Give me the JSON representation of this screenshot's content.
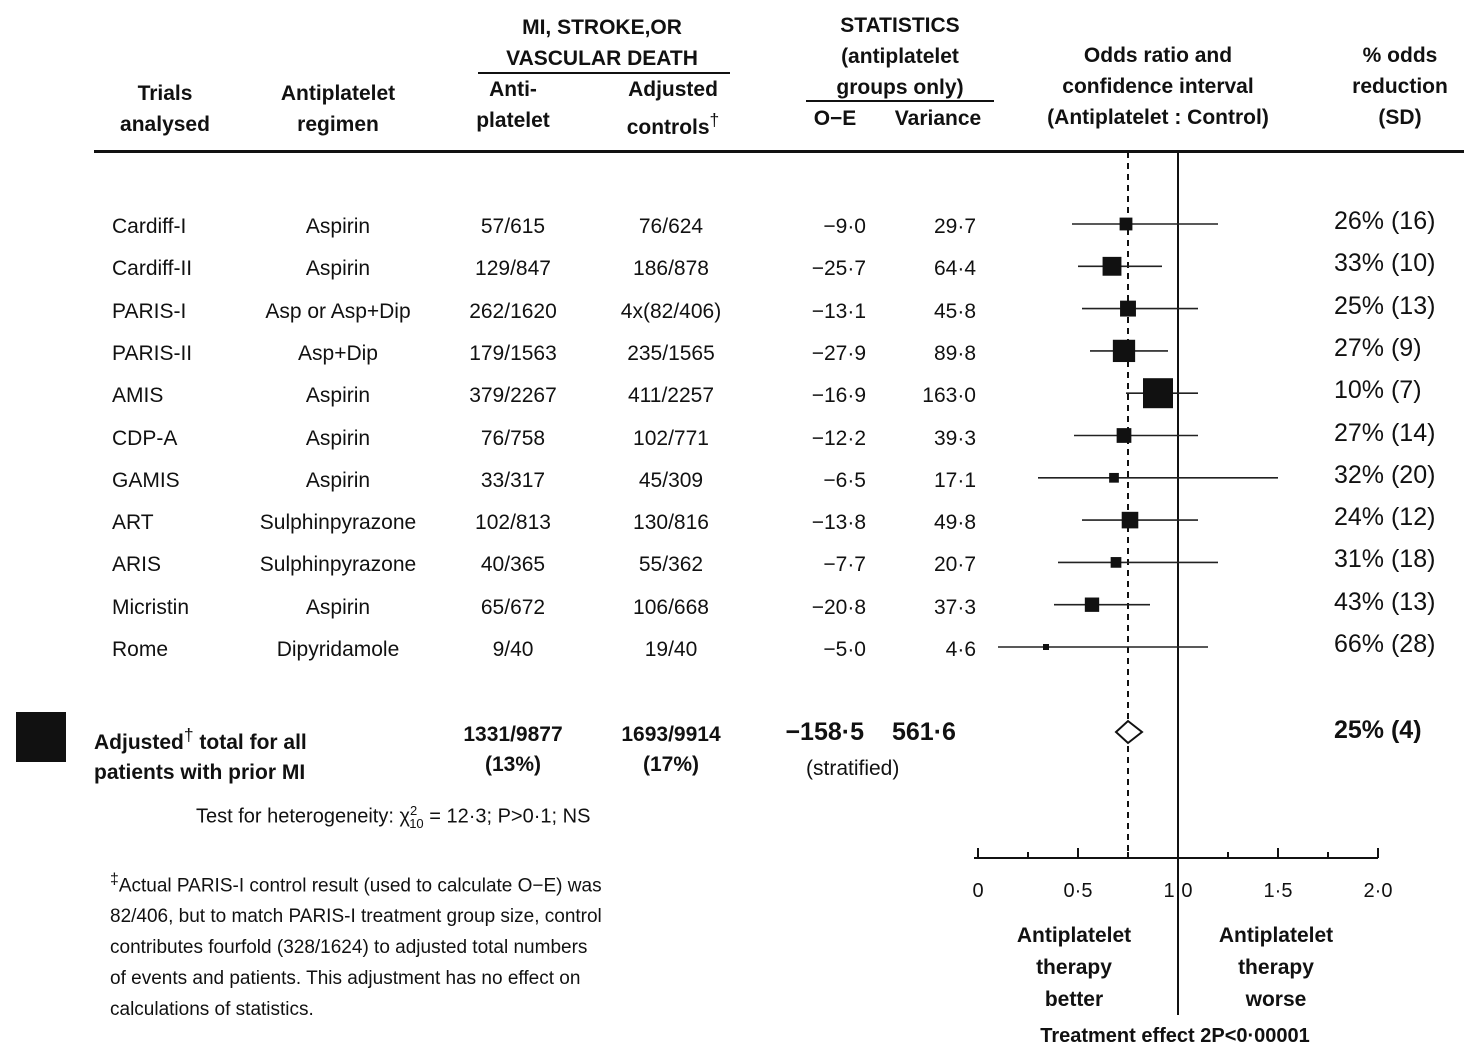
{
  "headers": {
    "trials": [
      "Trials",
      "analysed"
    ],
    "regimen": [
      "Antiplatelet",
      "regimen"
    ],
    "group": [
      "MI, STROKE,OR",
      "VASCULAR DEATH"
    ],
    "anti": [
      "Anti-",
      "platelet"
    ],
    "adjusted": [
      "Adjusted",
      "controls"
    ],
    "adjusted_mark": "†",
    "stats": [
      "STATISTICS",
      "(antiplatelet",
      "groups only)"
    ],
    "oe": "O−E",
    "variance": "Variance",
    "or": [
      "Odds ratio and",
      "confidence interval",
      "(Antiplatelet : Control)"
    ],
    "reduction": [
      "% odds",
      "reduction",
      "(SD)"
    ]
  },
  "rows": [
    {
      "trial": "Cardiff-I",
      "regimen": "Aspirin",
      "anti": "57/615",
      "control": "76/624",
      "oe": "−9·0",
      "var": "29·7",
      "red": "26% (16)"
    },
    {
      "trial": "Cardiff-II",
      "regimen": "Aspirin",
      "anti": "129/847",
      "control": "186/878",
      "oe": "−25·7",
      "var": "64·4",
      "red": "33% (10)"
    },
    {
      "trial": "PARIS-I",
      "regimen": "Asp or Asp+Dip",
      "anti": "262/1620",
      "control": "4x(82/406)",
      "oe": "−13·1",
      "var": "45·8",
      "red": "25% (13)"
    },
    {
      "trial": "PARIS-II",
      "regimen": "Asp+Dip",
      "anti": "179/1563",
      "control": "235/1565",
      "oe": "−27·9",
      "var": "89·8",
      "red": "27% (9)"
    },
    {
      "trial": "AMIS",
      "regimen": "Aspirin",
      "anti": "379/2267",
      "control": "411/2257",
      "oe": "−16·9",
      "var": "163·0",
      "red": "10% (7)"
    },
    {
      "trial": "CDP-A",
      "regimen": "Aspirin",
      "anti": "76/758",
      "control": "102/771",
      "oe": "−12·2",
      "var": "39·3",
      "red": "27% (14)"
    },
    {
      "trial": "GAMIS",
      "regimen": "Aspirin",
      "anti": "33/317",
      "control": "45/309",
      "oe": "−6·5",
      "var": "17·1",
      "red": "32% (20)"
    },
    {
      "trial": "ART",
      "regimen": "Sulphinpyrazone",
      "anti": "102/813",
      "control": "130/816",
      "oe": "−13·8",
      "var": "49·8",
      "red": "24% (12)"
    },
    {
      "trial": "ARIS",
      "regimen": "Sulphinpyrazone",
      "anti": "40/365",
      "control": "55/362",
      "oe": "−7·7",
      "var": "20·7",
      "red": "31% (18)"
    },
    {
      "trial": "Micristin",
      "regimen": "Aspirin",
      "anti": "65/672",
      "control": "106/668",
      "oe": "−20·8",
      "var": "37·3",
      "red": "43% (13)"
    },
    {
      "trial": "Rome",
      "regimen": "Dipyridamole",
      "anti": "9/40",
      "control": "19/40",
      "oe": "−5·0",
      "var": "4·6",
      "red": "66% (28)"
    }
  ],
  "total": {
    "label": [
      "Adjusted",
      "total for all",
      "patients with prior MI"
    ],
    "mark": "†",
    "anti": "1331/9877",
    "anti_pct": "(13%)",
    "control": "1693/9914",
    "control_pct": "(17%)",
    "oe": "−158·5",
    "var": "561·6",
    "stratified": "(stratified)",
    "red": "25% (4)"
  },
  "heterogeneity": {
    "prefix": "Test for heterogeneity: χ",
    "sup": "2",
    "sub": "10",
    "suffix": " = 12·3; P>0·1; NS"
  },
  "footnote": {
    "mark": "‡",
    "lines": [
      "Actual PARIS-I control result (used to calculate O−E) was",
      "82/406, but to match PARIS-I treatment group size, control",
      "contributes fourfold (328/1624) to adjusted total numbers",
      "of events and patients. This adjustment has no effect on",
      "calculations of statistics."
    ]
  },
  "chart_data": {
    "type": "forest",
    "x_ticks": [
      "0",
      "0·5",
      "1·0",
      "1·5",
      "2·0"
    ],
    "xlim": [
      0,
      2
    ],
    "reference_lines": {
      "no_effect": 1.0,
      "overall": 0.75
    },
    "categories": [
      "Cardiff-I",
      "Cardiff-II",
      "PARIS-I",
      "PARIS-II",
      "AMIS",
      "CDP-A",
      "GAMIS",
      "ART",
      "ARIS",
      "Micristin",
      "Rome"
    ],
    "series": [
      {
        "values": [
          {
            "or": 0.74,
            "lo": 0.47,
            "hi": 1.2,
            "weight": 29.7
          },
          {
            "or": 0.67,
            "lo": 0.5,
            "hi": 0.92,
            "weight": 64.4
          },
          {
            "or": 0.75,
            "lo": 0.52,
            "hi": 1.1,
            "weight": 45.8
          },
          {
            "or": 0.73,
            "lo": 0.56,
            "hi": 0.95,
            "weight": 89.8
          },
          {
            "or": 0.9,
            "lo": 0.74,
            "hi": 1.1,
            "weight": 163.0
          },
          {
            "or": 0.73,
            "lo": 0.48,
            "hi": 1.1,
            "weight": 39.3
          },
          {
            "or": 0.68,
            "lo": 0.3,
            "hi": 1.5,
            "weight": 17.1
          },
          {
            "or": 0.76,
            "lo": 0.52,
            "hi": 1.1,
            "weight": 49.8
          },
          {
            "or": 0.69,
            "lo": 0.4,
            "hi": 1.2,
            "weight": 20.7
          },
          {
            "or": 0.57,
            "lo": 0.38,
            "hi": 0.86,
            "weight": 37.3
          },
          {
            "or": 0.34,
            "lo": 0.1,
            "hi": 1.15,
            "weight": 4.6
          }
        ]
      }
    ],
    "total": {
      "or": 0.75,
      "lo": 0.69,
      "hi": 0.82
    },
    "direction_labels": {
      "left": [
        "Antiplatelet",
        "therapy",
        "better"
      ],
      "right": [
        "Antiplatelet",
        "therapy",
        "worse"
      ]
    },
    "effect_label": "Treatment effect 2P<0·00001"
  }
}
